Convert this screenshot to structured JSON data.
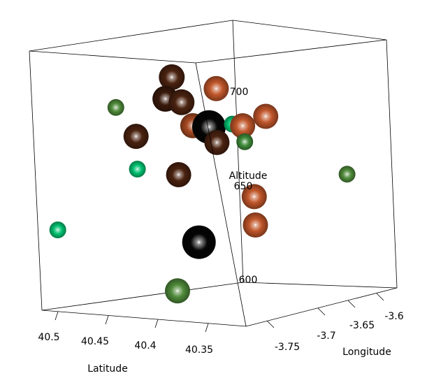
{
  "chart_data": {
    "type": "scatter",
    "title": "",
    "axes": {
      "latitude": {
        "label": "Latitude",
        "ticks": [
          "40.5",
          "40.45",
          "40.4",
          "40.35"
        ]
      },
      "longitude": {
        "label": "Longitude",
        "ticks": [
          "-3.75",
          "-3.7",
          "-3.65",
          "-3.6"
        ]
      },
      "altitude": {
        "label": "Altitude",
        "ticks": [
          "700",
          "650",
          "600"
        ]
      }
    },
    "grid": false,
    "legend": "none",
    "points": [
      {
        "latitude": 40.43,
        "longitude": -3.72,
        "altitude": 692,
        "size": "large",
        "color": "#4a2210"
      },
      {
        "latitude": 40.42,
        "longitude": -3.72,
        "altitude": 680,
        "size": "large",
        "color": "#4a2210"
      },
      {
        "latitude": 40.43,
        "longitude": -3.73,
        "altitude": 682,
        "size": "large",
        "color": "#3a1a0c"
      },
      {
        "latitude": 40.47,
        "longitude": -3.75,
        "altitude": 680,
        "size": "small",
        "color": "#4f8a3a"
      },
      {
        "latitude": 40.38,
        "longitude": -3.72,
        "altitude": 684,
        "size": "medium",
        "color": "#c0562a"
      },
      {
        "latitude": 40.44,
        "longitude": -3.76,
        "altitude": 665,
        "size": "medium",
        "color": "#4a2210"
      },
      {
        "latitude": 40.4,
        "longitude": -3.73,
        "altitude": 668,
        "size": "medium",
        "color": "#a84a22"
      },
      {
        "latitude": 40.39,
        "longitude": -3.72,
        "altitude": 667,
        "size": "xlarge",
        "color": "#050505"
      },
      {
        "latitude": 40.38,
        "longitude": -3.7,
        "altitude": 668,
        "size": "small",
        "color": "#00c070"
      },
      {
        "latitude": 40.36,
        "longitude": -3.71,
        "altitude": 666,
        "size": "medium",
        "color": "#c0562a"
      },
      {
        "latitude": 40.35,
        "longitude": -3.69,
        "altitude": 670,
        "size": "medium",
        "color": "#c0562a"
      },
      {
        "latitude": 40.39,
        "longitude": -3.71,
        "altitude": 660,
        "size": "medium",
        "color": "#4a2210"
      },
      {
        "latitude": 40.35,
        "longitude": -3.72,
        "altitude": 658,
        "size": "small",
        "color": "#3e8a3a"
      },
      {
        "latitude": 40.44,
        "longitude": -3.76,
        "altitude": 650,
        "size": "small",
        "color": "#00c070"
      },
      {
        "latitude": 40.41,
        "longitude": -3.74,
        "altitude": 646,
        "size": "medium",
        "color": "#4a2210"
      },
      {
        "latitude": 40.31,
        "longitude": -3.63,
        "altitude": 642,
        "size": "small",
        "color": "#4f8a3a"
      },
      {
        "latitude": 40.35,
        "longitude": -3.71,
        "altitude": 633,
        "size": "medium",
        "color": "#c0562a"
      },
      {
        "latitude": 40.35,
        "longitude": -3.71,
        "altitude": 620,
        "size": "medium",
        "color": "#c0562a"
      },
      {
        "latitude": 40.39,
        "longitude": -3.74,
        "altitude": 614,
        "size": "xlarge",
        "color": "#050505"
      },
      {
        "latitude": 40.5,
        "longitude": -3.8,
        "altitude": 625,
        "size": "small",
        "color": "#00c070"
      },
      {
        "latitude": 40.4,
        "longitude": -3.76,
        "altitude": 592,
        "size": "medium",
        "color": "#4f8a3a"
      }
    ]
  }
}
